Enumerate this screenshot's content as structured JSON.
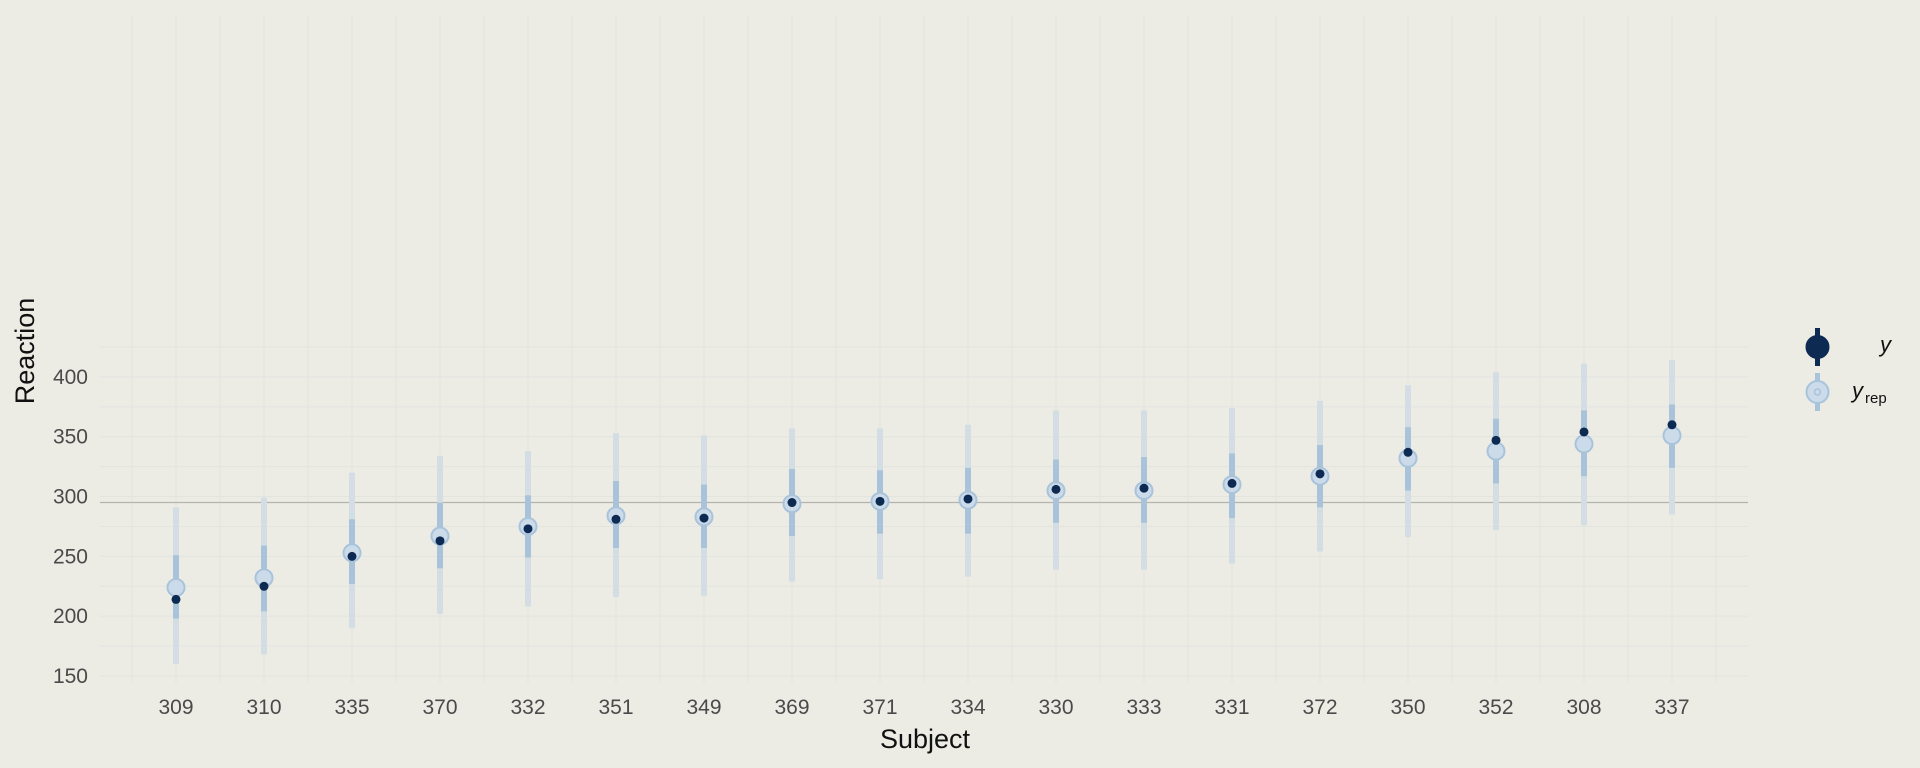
{
  "chart_data": {
    "type": "scatter",
    "description_free": true,
    "xlabel": "Subject",
    "ylabel": "Reaction",
    "categories": [
      "309",
      "310",
      "335",
      "370",
      "332",
      "351",
      "349",
      "369",
      "371",
      "334",
      "330",
      "333",
      "331",
      "372",
      "350",
      "352",
      "308",
      "337"
    ],
    "ylim": [
      150,
      420
    ],
    "yticks": [
      150,
      200,
      250,
      300,
      350,
      400
    ],
    "reference_line": 295,
    "grid": true,
    "legend_position": "right",
    "legend": {
      "y": "y",
      "yrep_base": "y",
      "yrep_sub": "rep"
    },
    "series": [
      {
        "name": "y",
        "values": [
          214,
          225,
          250,
          263,
          273,
          281,
          282,
          295,
          296,
          298,
          306,
          307,
          311,
          319,
          337,
          347,
          354,
          360
        ]
      },
      {
        "name": "y_rep",
        "values": [
          224,
          232,
          253,
          267,
          275,
          284,
          283,
          294,
          296,
          297,
          305,
          305,
          310,
          317,
          332,
          338,
          344,
          351
        ],
        "inner_low": [
          198,
          204,
          227,
          240,
          249,
          257,
          257,
          267,
          269,
          269,
          278,
          278,
          282,
          291,
          305,
          311,
          317,
          324
        ],
        "inner_high": [
          251,
          259,
          281,
          295,
          301,
          313,
          310,
          323,
          322,
          324,
          331,
          333,
          336,
          343,
          358,
          365,
          372,
          377
        ],
        "outer_low": [
          160,
          168,
          190,
          202,
          208,
          216,
          217,
          229,
          231,
          233,
          239,
          239,
          244,
          254,
          266,
          272,
          276,
          285
        ],
        "outer_high": [
          291,
          299,
          320,
          334,
          338,
          353,
          351,
          357,
          357,
          360,
          372,
          372,
          374,
          380,
          393,
          404,
          411,
          414
        ]
      }
    ],
    "colors": {
      "background": "#ECECE5",
      "grid": "#E2E4E0",
      "outer_interval": "#D2DEE3",
      "inner_interval": "#A9C3DB",
      "yrep_point_fill": "#CBDBEA",
      "yrep_point_stroke": "#A9C3DB",
      "y_point": "#0D2A52",
      "reference_line": "#B4B4AD"
    }
  }
}
